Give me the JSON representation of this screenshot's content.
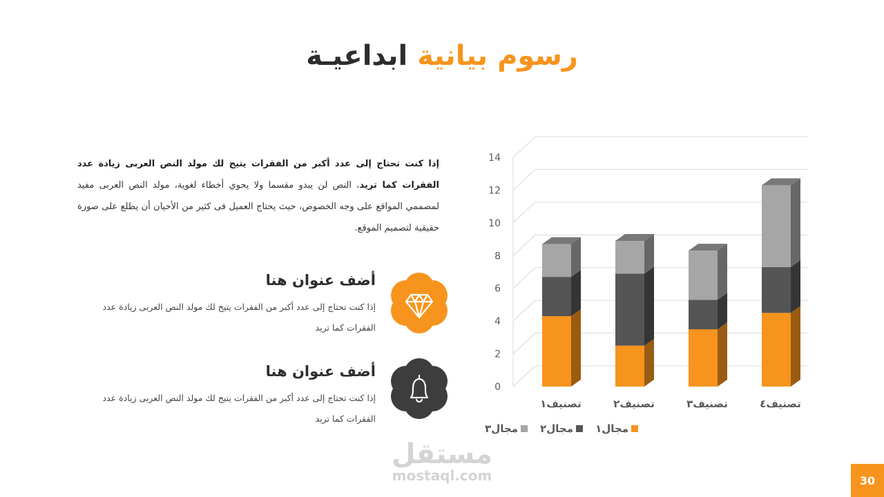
{
  "title": {
    "part1": "رسوم بيانية",
    "part2": "ابداعيـة"
  },
  "intro": {
    "bold_lead": "إذا كنت تحتاج إلى عدد أكبر من الفقرات يتيح لك مولد النص العربى زيادة عدد الفقرات كما تريد",
    "body": "، النص لن يبدو مقسما ولا يحوي أخطاء لغوية، مولد النص العربى مفيد لمصممي المواقع على وجه الخصوص، حيث يحتاج العميل فى كثير من الأحيان أن يطلع على صورة حقيقية لتصميم الموقع."
  },
  "features": [
    {
      "title": "أضف عنوان هنا",
      "description": "إذا كنت تحتاج إلى عدد أكبر من الفقرات يتيح لك مولد النص العربى زيادة عدد الفقرات كما تريد",
      "icon": "diamond-icon",
      "color": "#f7941d"
    },
    {
      "title": "أضف عنوان هنا",
      "description": "إذا كنت تحتاج إلى عدد أكبر من الفقرات يتيح لك مولد النص العربى زيادة عدد الفقرات كما تريد",
      "icon": "bell-icon",
      "color": "#3d3d3d"
    }
  ],
  "chart_data": {
    "type": "bar",
    "stacked": true,
    "three_d": true,
    "categories": [
      "تصنيف١",
      "تصنيف٢",
      "تصنيف٣",
      "تصنيف٤"
    ],
    "series": [
      {
        "name": "مجال١",
        "values": [
          4.3,
          2.5,
          3.5,
          4.5
        ],
        "color": "#f7941d"
      },
      {
        "name": "مجال٢",
        "values": [
          2.4,
          4.4,
          1.8,
          2.8
        ],
        "color": "#555555"
      },
      {
        "name": "مجال٣",
        "values": [
          2.0,
          2.0,
          3.0,
          5.0
        ],
        "color": "#a6a6a6"
      }
    ],
    "ylim": [
      0,
      14
    ],
    "yticks": [
      "0",
      "2",
      "4",
      "6",
      "8",
      "10",
      "12",
      "14"
    ],
    "grid": true,
    "legend_position": "bottom"
  },
  "watermark": {
    "arabic": "مستقل",
    "latin": "mostaql.com"
  },
  "page_number": "30"
}
